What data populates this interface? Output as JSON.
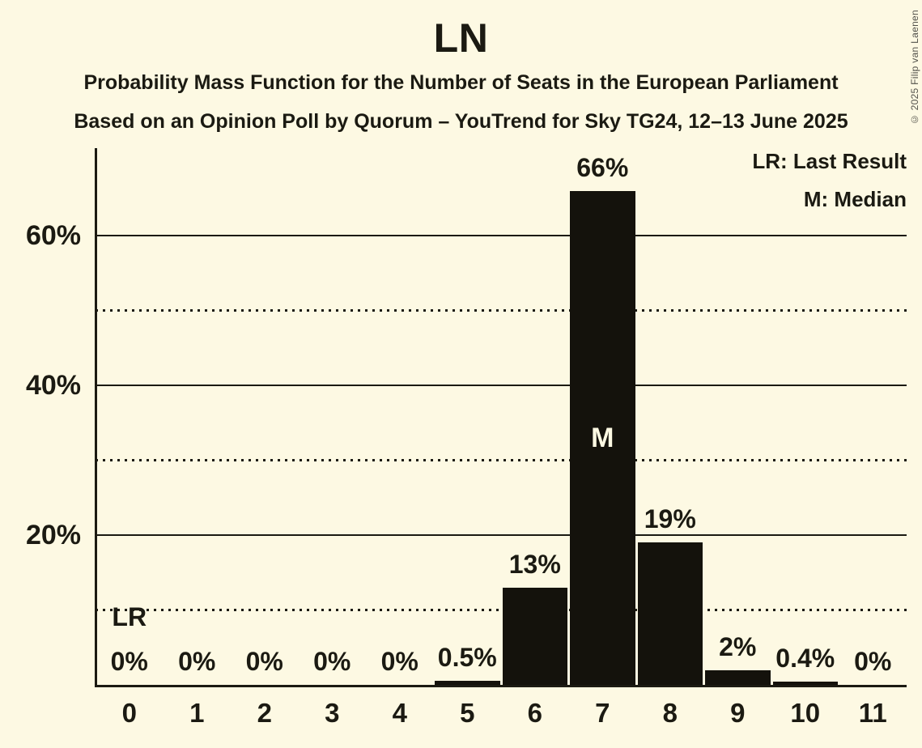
{
  "header": {
    "title": "LN",
    "subtitle": "Probability Mass Function for the Number of Seats in the European Parliament",
    "subtitle2": "Based on an Opinion Poll by Quorum – YouTrend for Sky TG24, 12–13 June 2025"
  },
  "legend": {
    "last_result": "LR: Last Result",
    "median": "M: Median"
  },
  "copyright": "© 2025 Filip van Laenen",
  "colors": {
    "background": "#FDF9E3",
    "bar": "#14120C",
    "ink": "#1B1A12",
    "median_label": "#FDF9E3",
    "copyright": "#52514A"
  },
  "chart_data": {
    "type": "bar",
    "title": "LN",
    "categories": [
      "0",
      "1",
      "2",
      "3",
      "4",
      "5",
      "6",
      "7",
      "8",
      "9",
      "10",
      "11"
    ],
    "values": [
      0,
      0,
      0,
      0,
      0,
      0.5,
      13,
      66,
      19,
      2,
      0.4,
      0
    ],
    "value_labels": [
      "0%",
      "0%",
      "0%",
      "0%",
      "0%",
      "0.5%",
      "13%",
      "66%",
      "19%",
      "2%",
      "0.4%",
      "0%"
    ],
    "xlabel": "",
    "ylabel": "",
    "ylim": [
      0,
      71.7
    ],
    "grid": "on",
    "legend_position": "top-right",
    "yticks": [
      {
        "value": 20,
        "label": "20%"
      },
      {
        "value": 40,
        "label": "40%"
      },
      {
        "value": 60,
        "label": "60%"
      }
    ],
    "gridlines_solid": [
      20,
      40,
      60
    ],
    "gridlines_dotted": [
      10,
      30,
      50
    ],
    "annotations": {
      "lr_label": "LR",
      "lr_seat": 0,
      "median_label": "M",
      "median_seat": 7
    }
  }
}
